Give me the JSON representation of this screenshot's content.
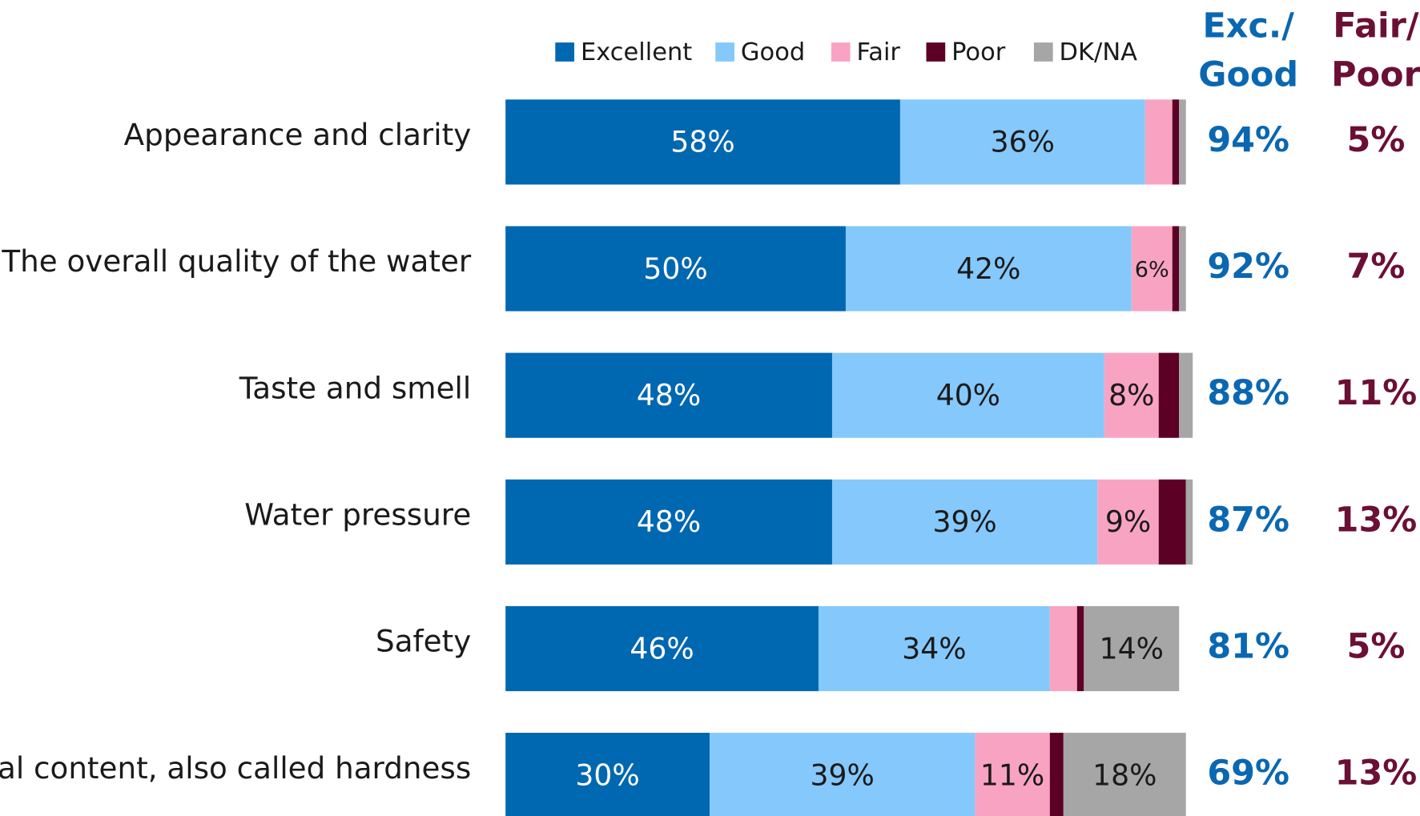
{
  "chart_data": {
    "type": "stacked-bar-horizontal",
    "categories": [
      "Appearance and clarity",
      "The overall quality of the water",
      "Taste and smell",
      "Water pressure",
      "Safety",
      "Mineral content, also called hardness"
    ],
    "xlim": [
      0,
      100
    ],
    "series": [
      {
        "name": "Excellent",
        "color": "#0067b1",
        "label_color": "#ffffff",
        "values": [
          58,
          50,
          48,
          48,
          46,
          30
        ],
        "value_labels": [
          "58%",
          "50%",
          "48%",
          "48%",
          "46%",
          "30%"
        ]
      },
      {
        "name": "Good",
        "color": "#85c8fb",
        "label_color": "#1a1a1a",
        "values": [
          36,
          42,
          40,
          39,
          34,
          39
        ],
        "value_labels": [
          "36%",
          "42%",
          "40%",
          "39%",
          "34%",
          "39%"
        ]
      },
      {
        "name": "Fair",
        "color": "#f9a3c3",
        "label_color": "#1a1a1a",
        "values": [
          4,
          6,
          8,
          9,
          4,
          11
        ],
        "value_labels": [
          null,
          "6%",
          "8%",
          "9%",
          null,
          "11%"
        ]
      },
      {
        "name": "Poor",
        "color": "#5c0026",
        "label_color": "#ffffff",
        "values": [
          1,
          1,
          3,
          4,
          1,
          2
        ],
        "value_labels": [
          null,
          null,
          null,
          null,
          null,
          null
        ]
      },
      {
        "name": "DK/NA",
        "color": "#a6a6a6",
        "label_color": "#1a1a1a",
        "values": [
          1,
          1,
          2,
          1,
          14,
          18
        ],
        "value_labels": [
          null,
          null,
          null,
          null,
          "14%",
          "18%"
        ]
      }
    ],
    "summary_columns": [
      {
        "title": [
          "Exc./",
          "Good"
        ],
        "color": "#0a67b1",
        "values": [
          94,
          92,
          88,
          87,
          81,
          69
        ],
        "value_labels": [
          "94%",
          "92%",
          "88%",
          "87%",
          "81%",
          "69%"
        ]
      },
      {
        "title": [
          "Fair/",
          "Poor"
        ],
        "color": "#6b0f35",
        "values": [
          5,
          7,
          11,
          13,
          5,
          13
        ],
        "value_labels": [
          "5%",
          "7%",
          "11%",
          "13%",
          "5%",
          "13%"
        ]
      }
    ]
  }
}
